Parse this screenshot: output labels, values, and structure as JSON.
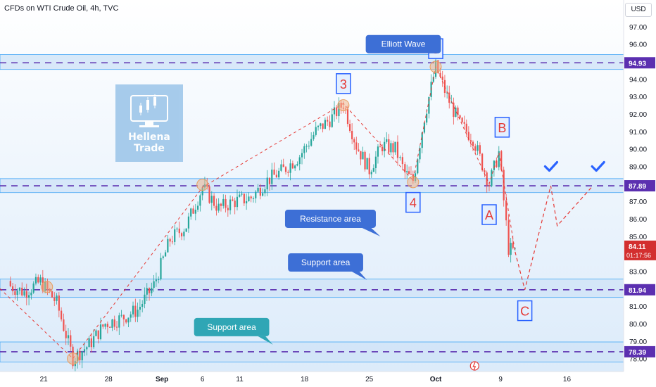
{
  "header": {
    "title": "CFDs on WTI Crude Oil, 4h, TVC",
    "currency": "USD"
  },
  "logo": {
    "line1": "Hellena",
    "line2": "Trade"
  },
  "colors": {
    "up": "#26a69a",
    "down": "#ef5350",
    "zone_fill": "#cfe3f7",
    "zone_border": "#42a5f5",
    "dashed": "#5b2fb0",
    "wave_label": "#e53935",
    "callout_blue": "#3d6fd6",
    "callout_teal": "#2fa6b5",
    "check": "#2962ff"
  },
  "chart_data": {
    "type": "candlestick",
    "y_axis": {
      "ticks": [
        "97.00",
        "96.00",
        "95.00",
        "94.00",
        "93.00",
        "92.00",
        "91.00",
        "90.00",
        "89.00",
        "88.00",
        "87.00",
        "86.00",
        "85.00",
        "84.00",
        "83.00",
        "82.00",
        "81.00",
        "80.00",
        "79.00",
        "78.00"
      ],
      "range": [
        77.5,
        97.8
      ]
    },
    "x_axis": {
      "ticks": [
        "21",
        "28",
        "Sep",
        "6",
        "11",
        "18",
        "25",
        "Oct",
        "9",
        "16"
      ]
    },
    "price_levels": [
      {
        "value": 94.93,
        "label": "94.93",
        "color": "#5b2fb0"
      },
      {
        "value": 87.89,
        "label": "87.89",
        "color": "#5b2fb0"
      },
      {
        "value": 81.94,
        "label": "81.94",
        "color": "#5b2fb0"
      },
      {
        "value": 78.39,
        "label": "78.39",
        "color": "#5b2fb0"
      }
    ],
    "last_price": {
      "value": 84.11,
      "label": "84.11",
      "countdown": "01:17:56",
      "color": "#d32f2f"
    },
    "zones": [
      {
        "from": 94.55,
        "to": 95.4
      },
      {
        "from": 87.5,
        "to": 88.3
      },
      {
        "from": 81.5,
        "to": 82.55
      },
      {
        "from": 77.8,
        "to": 78.95
      }
    ],
    "wave_labels": [
      {
        "label": "3",
        "x": 21.2,
        "y": 93.7
      },
      {
        "label": "5",
        "x": 26.9,
        "y": 95.7
      },
      {
        "label": "4",
        "x": 25.5,
        "y": 86.9
      },
      {
        "label": "A",
        "x": 30.2,
        "y": 86.2
      },
      {
        "label": "B",
        "x": 31.0,
        "y": 91.2
      },
      {
        "label": "C",
        "x": 32.4,
        "y": 80.7
      }
    ],
    "callouts": [
      {
        "text": "Elliott Wave",
        "x": 24.9,
        "y": 96.0,
        "style": "blue"
      },
      {
        "text": "Resistance area",
        "x": 20.4,
        "y": 86.0,
        "style": "blue"
      },
      {
        "text": "Support area",
        "x": 20.1,
        "y": 83.5,
        "style": "blue"
      },
      {
        "text": "Support area",
        "x": 14.3,
        "y": 79.8,
        "style": "teal"
      }
    ],
    "series": [
      {
        "name": "",
        "points": [
          {
            "x": 0.5,
            "y": 82.2
          },
          {
            "x": 1.5,
            "y": 81.8
          },
          {
            "x": 2.5,
            "y": 82.4
          },
          {
            "x": 3.5,
            "y": 81.2
          },
          {
            "x": 4.5,
            "y": 78.0
          },
          {
            "x": 5.5,
            "y": 78.8
          },
          {
            "x": 6.5,
            "y": 80.0
          },
          {
            "x": 7.5,
            "y": 80.3
          },
          {
            "x": 8.5,
            "y": 80.8
          },
          {
            "x": 9.5,
            "y": 82.2
          },
          {
            "x": 10.5,
            "y": 84.8
          },
          {
            "x": 11.5,
            "y": 85.6
          },
          {
            "x": 12.5,
            "y": 87.8
          },
          {
            "x": 13.5,
            "y": 86.6
          },
          {
            "x": 14.5,
            "y": 87.0
          },
          {
            "x": 15.5,
            "y": 87.2
          },
          {
            "x": 16.5,
            "y": 88.2
          },
          {
            "x": 17.5,
            "y": 88.8
          },
          {
            "x": 18.5,
            "y": 89.6
          },
          {
            "x": 19.5,
            "y": 91.0
          },
          {
            "x": 20.5,
            "y": 91.8
          },
          {
            "x": 21.2,
            "y": 92.6
          },
          {
            "x": 22.0,
            "y": 90.2
          },
          {
            "x": 22.8,
            "y": 88.8
          },
          {
            "x": 23.6,
            "y": 90.2
          },
          {
            "x": 24.4,
            "y": 90.0
          },
          {
            "x": 25.0,
            "y": 88.6
          },
          {
            "x": 25.5,
            "y": 88.2
          },
          {
            "x": 26.2,
            "y": 91.8
          },
          {
            "x": 26.9,
            "y": 94.7
          },
          {
            "x": 27.6,
            "y": 93.0
          },
          {
            "x": 28.4,
            "y": 91.4
          },
          {
            "x": 29.2,
            "y": 90.6
          },
          {
            "x": 30.2,
            "y": 88.0
          },
          {
            "x": 30.8,
            "y": 89.8
          },
          {
            "x": 31.4,
            "y": 84.3
          },
          {
            "x": 31.8,
            "y": 84.11
          }
        ]
      }
    ],
    "projection": [
      {
        "x": 31.8,
        "y": 84.11
      },
      {
        "x": 32.4,
        "y": 81.94
      },
      {
        "x": 34.0,
        "y": 87.89
      },
      {
        "x": 34.4,
        "y": 85.6
      },
      {
        "x": 36.6,
        "y": 87.89
      }
    ]
  }
}
